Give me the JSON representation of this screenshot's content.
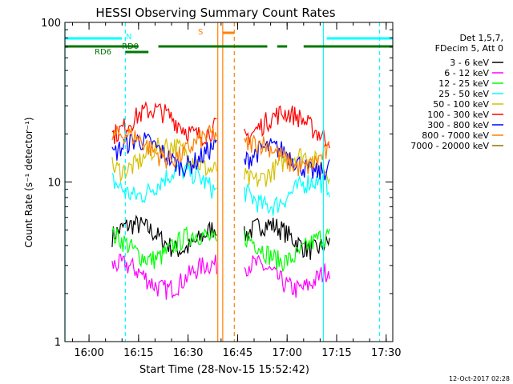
{
  "chart_data": {
    "type": "line",
    "title": "HESSI Observing Summary Count Rates",
    "xlabel": "Start Time (28-Nov-15 15:52:42)",
    "ylabel": "Count Rate (s⁻¹ detector⁻¹)",
    "y_scale": "log",
    "ylim": [
      1,
      100
    ],
    "xlim": [
      "15:52:42",
      "17:32:00"
    ],
    "y_ticks": [
      {
        "value": 1,
        "label": "1"
      },
      {
        "value": 10,
        "label": "10"
      },
      {
        "value": 100,
        "label": "100"
      }
    ],
    "x_ticks": [
      {
        "value": "16:00",
        "label": "16:00"
      },
      {
        "value": "16:15",
        "label": "16:15"
      },
      {
        "value": "16:30",
        "label": "16:30"
      },
      {
        "value": "16:45",
        "label": "16:45"
      },
      {
        "value": "17:00",
        "label": "17:00"
      },
      {
        "value": "17:15",
        "label": "17:15"
      },
      {
        "value": "17:30",
        "label": "17:30"
      }
    ],
    "legend_placement": "right",
    "legend_header": [
      "Det 1,5,7,",
      "FDecim 5, Att 0"
    ],
    "series": [
      {
        "name": "3 - 6 keV",
        "color": "#000000",
        "segments": [
          {
            "start": "16:07",
            "end": "16:39",
            "level": 4.6
          },
          {
            "start": "16:47",
            "end": "17:13",
            "level": 4.6
          }
        ]
      },
      {
        "name": "6 - 12 keV",
        "color": "#ff00ff",
        "segments": [
          {
            "start": "16:07",
            "end": "16:39",
            "level": 2.6
          },
          {
            "start": "16:47",
            "end": "17:13",
            "level": 2.6
          }
        ]
      },
      {
        "name": "12 - 25 keV",
        "color": "#00ff00",
        "segments": [
          {
            "start": "16:07",
            "end": "16:39",
            "level": 4.0
          },
          {
            "start": "16:47",
            "end": "17:13",
            "level": 3.9
          }
        ]
      },
      {
        "name": "25 - 50 keV",
        "color": "#00ffff",
        "segments": [
          {
            "start": "16:07",
            "end": "16:39",
            "level": 10.0
          },
          {
            "start": "16:47",
            "end": "17:13",
            "level": 8.6
          }
        ]
      },
      {
        "name": "50 - 100 keV",
        "color": "#d4c000",
        "segments": [
          {
            "start": "16:07",
            "end": "16:39",
            "level": 14.5
          },
          {
            "start": "16:47",
            "end": "17:13",
            "level": 12.5
          }
        ]
      },
      {
        "name": "100 - 300 keV",
        "color": "#ff0000",
        "segments": [
          {
            "start": "16:07",
            "end": "16:39",
            "level": 24.0
          },
          {
            "start": "16:47",
            "end": "17:13",
            "level": 23.0
          }
        ]
      },
      {
        "name": "300 - 800 keV",
        "color": "#0000ff",
        "segments": [
          {
            "start": "16:07",
            "end": "16:39",
            "level": 15.5
          },
          {
            "start": "16:47",
            "end": "17:13",
            "level": 14.0
          }
        ]
      },
      {
        "name": "800 - 7000 keV",
        "color": "#ff8000",
        "segments": [
          {
            "start": "16:07",
            "end": "16:39",
            "level": 17.0
          },
          {
            "start": "16:47",
            "end": "17:13",
            "level": 15.0
          }
        ]
      },
      {
        "name": "7000 - 20000 keV",
        "color": "#8b7000",
        "segments": []
      }
    ],
    "flags": [
      {
        "label": "RD0",
        "color": "#007700",
        "row": "upper"
      },
      {
        "label": "RD6",
        "color": "#007700",
        "row": "lower"
      },
      {
        "label": "N",
        "color": "#00ffff",
        "row": "top"
      },
      {
        "label": "S",
        "color": "#ff8000",
        "row": "top"
      }
    ],
    "vertical_markers": [
      {
        "time": "15:52:42",
        "color": "#00ffff",
        "style": "solid"
      },
      {
        "time": "16:11",
        "color": "#00ffff",
        "style": "dashed"
      },
      {
        "time": "16:39",
        "color": "#ff8000",
        "style": "solid"
      },
      {
        "time": "16:40:30",
        "color": "#ff8000",
        "style": "solid"
      },
      {
        "time": "16:44",
        "color": "#ff8000",
        "style": "dashed"
      },
      {
        "time": "17:11",
        "color": "#00ffff",
        "style": "solid"
      },
      {
        "time": "17:28",
        "color": "#00ffff",
        "style": "dashed"
      }
    ]
  },
  "footer": {
    "timestamp": "12-Oct-2017 02:28"
  }
}
